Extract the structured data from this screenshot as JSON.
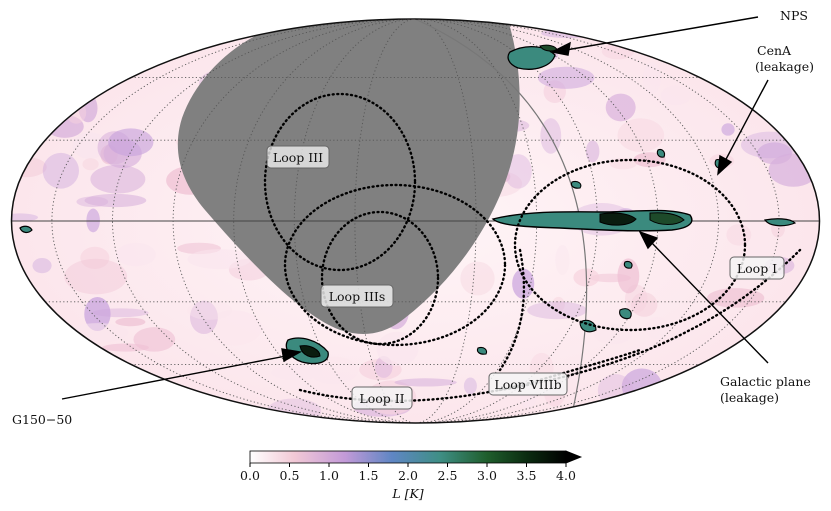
{
  "chart_data": {
    "type": "heatmap",
    "projection": "mollweide",
    "map_quantity": "L",
    "colorbar": {
      "label": "L [K]",
      "range": [
        0.0,
        4.0
      ],
      "ticks": [
        "0.0",
        "0.5",
        "1.0",
        "1.5",
        "2.0",
        "2.5",
        "3.0",
        "3.5",
        "4.0"
      ],
      "colormap_stops": [
        "#ffffff",
        "#f2c9d6",
        "#c39ad8",
        "#5f86c4",
        "#3f8f86",
        "#1f5e2c",
        "#0a2a10",
        "#000000"
      ],
      "extend": "max"
    },
    "masked_region_color": "#808080",
    "loop_labels": [
      "Loop I",
      "Loop II",
      "Loop III",
      "Loop IIIs",
      "Loop VIIIb"
    ],
    "annotations": [
      "NPS",
      "CenA (leakage)",
      "Galactic plane (leakage)",
      "G150−50"
    ],
    "grid": true
  },
  "labels": {
    "loop1": "Loop I",
    "loop2": "Loop II",
    "loop3": "Loop III",
    "loop3s": "Loop IIIs",
    "loop8b": "Loop VIIIb",
    "nps": "NPS",
    "cena_1": "CenA",
    "cena_2": "(leakage)",
    "gp_1": "Galactic plane",
    "gp_2": "(leakage)",
    "g150": "G150−50",
    "cbar_label": "L [K]"
  }
}
